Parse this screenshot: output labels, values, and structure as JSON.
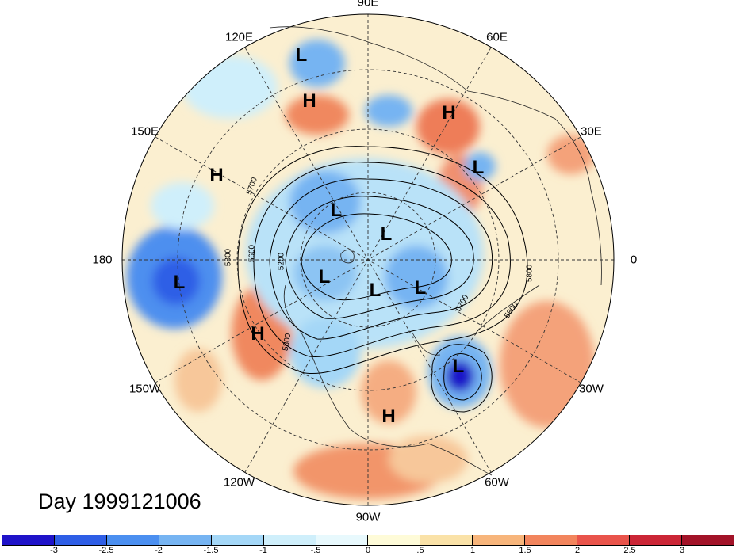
{
  "title": "Day 1999121006",
  "longitude_labels": [
    {
      "text": "90E",
      "angle": 90
    },
    {
      "text": "60E",
      "angle": 60
    },
    {
      "text": "30E",
      "angle": 30
    },
    {
      "text": "0",
      "angle": 0
    },
    {
      "text": "30W",
      "angle": -30
    },
    {
      "text": "60W",
      "angle": -60
    },
    {
      "text": "90W",
      "angle": -90
    },
    {
      "text": "120W",
      "angle": -120
    },
    {
      "text": "150W",
      "angle": -150
    },
    {
      "text": "180",
      "angle": 180
    },
    {
      "text": "150E",
      "angle": 150
    },
    {
      "text": "120E",
      "angle": 120
    }
  ],
  "pressure_centers": [
    {
      "type": "L"
    },
    {
      "type": "H"
    },
    {
      "type": "H"
    },
    {
      "type": "H"
    },
    {
      "type": "L"
    },
    {
      "type": "L"
    },
    {
      "type": "L"
    },
    {
      "type": "L"
    },
    {
      "type": "L"
    },
    {
      "type": "L"
    },
    {
      "type": "H"
    },
    {
      "type": "L"
    },
    {
      "type": "H"
    },
    {
      "type": "L"
    }
  ],
  "contour_levels": [
    "5200",
    "5600",
    "5700",
    "5800"
  ],
  "colorbar": {
    "tick_labels": [
      "-3",
      "-2.5",
      "-2",
      "-1.5",
      "-1",
      "-.5",
      "0",
      ".5",
      "1",
      "1.5",
      "2",
      "2.5",
      "3"
    ],
    "colors": [
      "#1f13c9",
      "#2e5ee6",
      "#4b8ff0",
      "#76b4f2",
      "#a4d7f7",
      "#cfeffb",
      "#e8f9fd",
      "#fefbd8",
      "#fae2a8",
      "#f7b57b",
      "#f2855d",
      "#e9544b",
      "#cb2636",
      "#a21328"
    ]
  }
}
